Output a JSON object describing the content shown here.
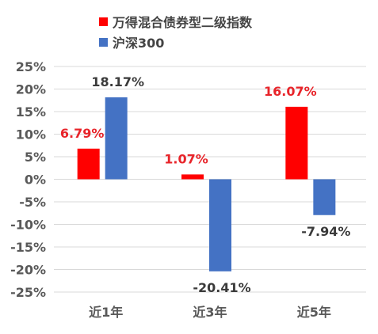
{
  "chart_data": {
    "type": "bar",
    "categories": [
      "近1年",
      "近3年",
      "近5年"
    ],
    "series": [
      {
        "name": "万得混合债券型二级指数",
        "values": [
          6.79,
          1.07,
          16.07
        ],
        "labels": [
          "6.79%",
          "1.07%",
          "16.07%"
        ],
        "color": "#ff0000",
        "label_color": "#e8242a"
      },
      {
        "name": "沪深300",
        "values": [
          18.17,
          -20.41,
          -7.94
        ],
        "labels": [
          "18.17%",
          "-20.41%",
          "-7.94%"
        ],
        "color": "#4472c4",
        "label_color": "#3a3a3a"
      }
    ],
    "ylim": [
      -25,
      25
    ],
    "yticks": [
      25,
      20,
      15,
      10,
      5,
      0,
      -5,
      -10,
      -15,
      -20,
      -25
    ],
    "ytick_labels": [
      "25%",
      "20%",
      "15%",
      "10%",
      "5%",
      "0%",
      "-5%",
      "-10%",
      "-15%",
      "-20%",
      "-25%"
    ],
    "grid": true,
    "legend_position": "top",
    "title": "",
    "xlabel": "",
    "ylabel": ""
  }
}
